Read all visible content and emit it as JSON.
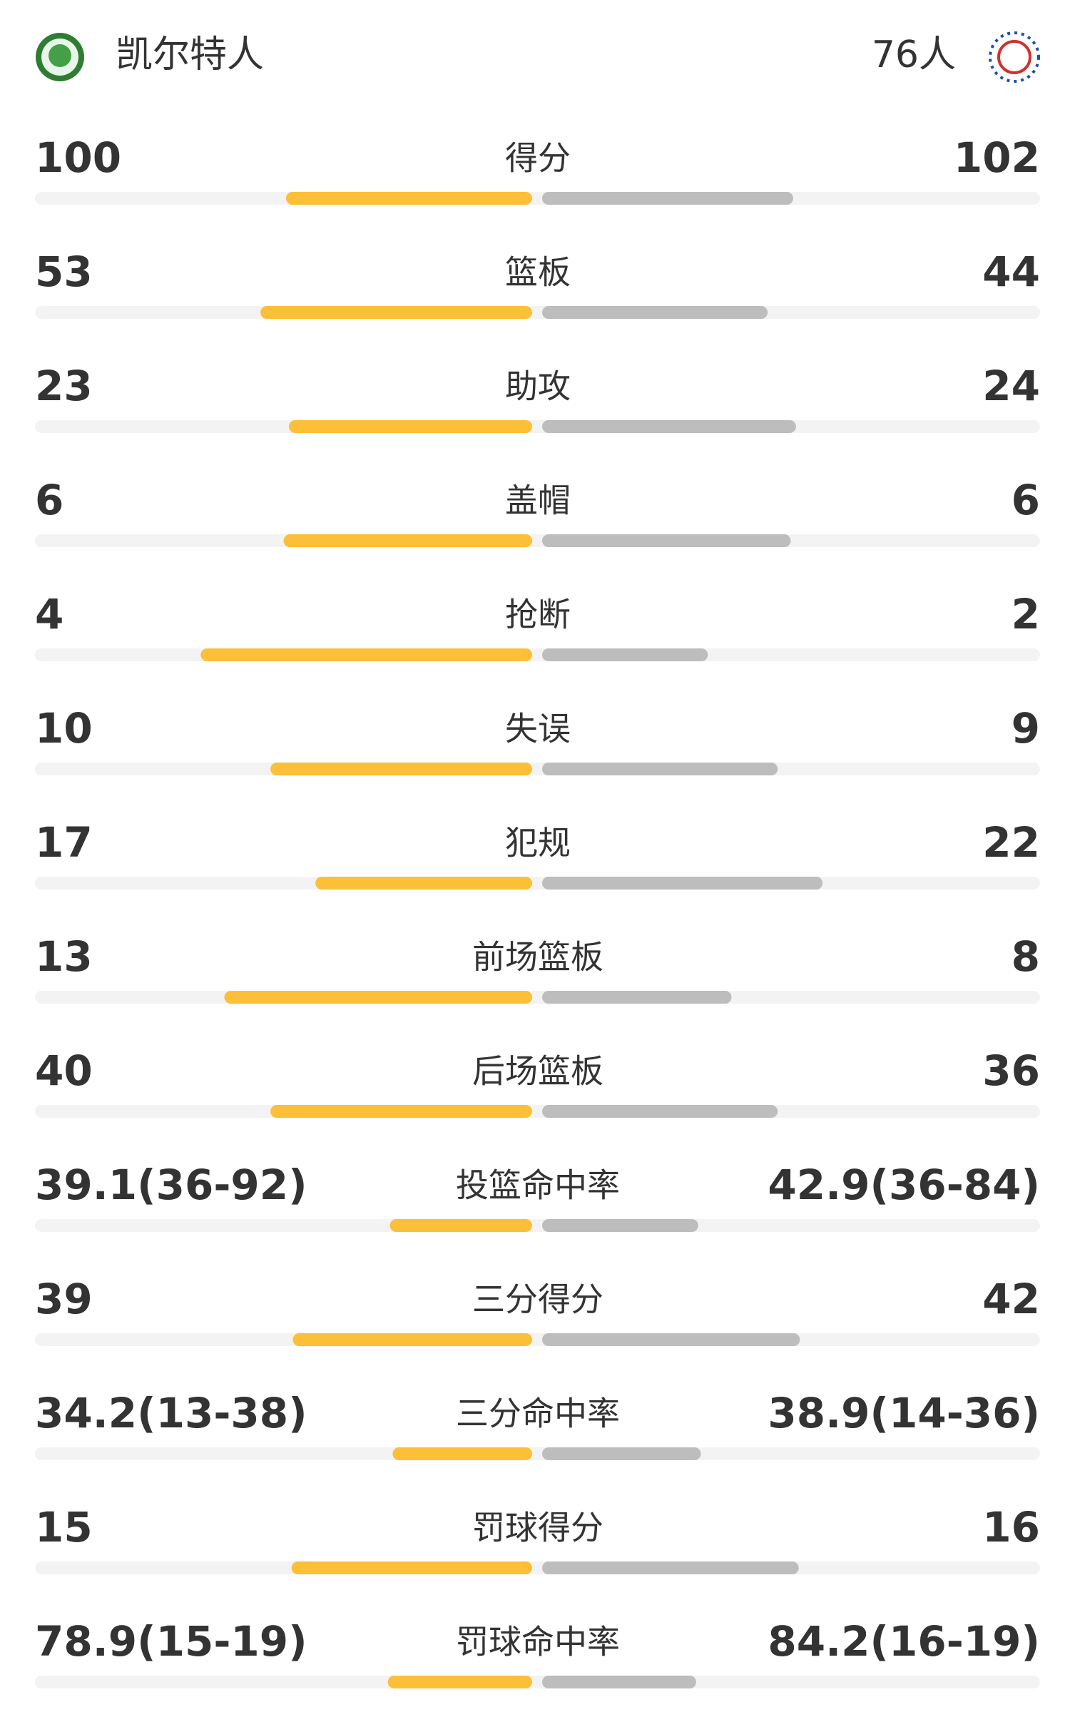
{
  "header": {
    "home_team": "凯尔特人",
    "away_team": "76人"
  },
  "stats": [
    {
      "label": "得分",
      "home": 100,
      "away": 102
    },
    {
      "label": "篮板",
      "home": 53,
      "away": 44
    },
    {
      "label": "助攻",
      "home": 23,
      "away": 24
    },
    {
      "label": "盖帽",
      "home": 6,
      "away": 6
    },
    {
      "label": "抢断",
      "home": 4,
      "away": 2
    },
    {
      "label": "失误",
      "home": 10,
      "away": 9
    },
    {
      "label": "犯规",
      "home": 17,
      "away": 22
    },
    {
      "label": "前场篮板",
      "home": 13,
      "away": 8
    },
    {
      "label": "后场篮板",
      "home": 40,
      "away": 36
    },
    {
      "label": "投篮命中率",
      "home": 39.1,
      "home_label": "39.1(36-92)",
      "away": 42.9,
      "away_label": "42.9(36-84)"
    },
    {
      "label": "三分得分",
      "home": 39,
      "away": 42
    },
    {
      "label": "三分命中率",
      "home": 34.2,
      "home_label": "34.2(13-38)",
      "away": 38.9,
      "away_label": "38.9(14-36)"
    },
    {
      "label": "罚球得分",
      "home": 15,
      "away": 16
    },
    {
      "label": "罚球命中率",
      "home": 78.9,
      "home_label": "78.9(15-19)",
      "away": 84.2,
      "away_label": "84.2(16-19)"
    }
  ],
  "colors": {
    "home": "#fbbf38",
    "away": "#bdbdbd",
    "track": "#f3f3f3"
  }
}
